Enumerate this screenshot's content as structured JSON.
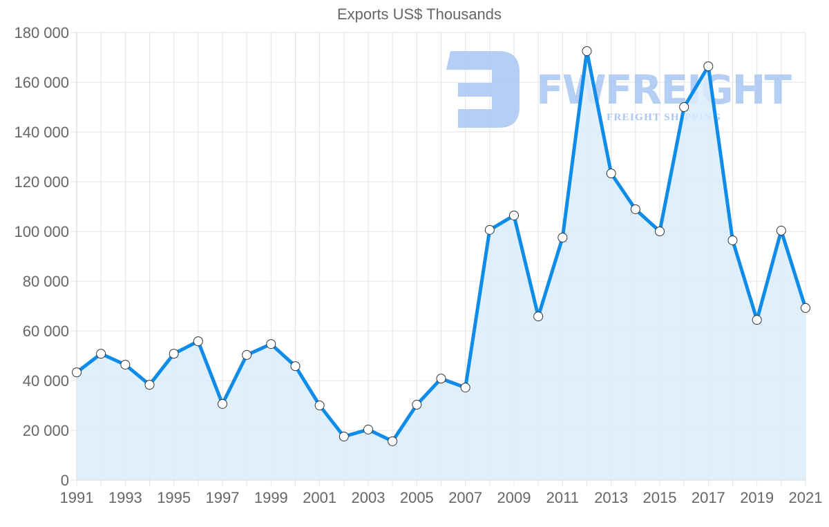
{
  "chart_data": {
    "type": "line",
    "title": "Exports US$ Thousands",
    "xlabel": "",
    "ylabel": "",
    "x": [
      1991,
      1992,
      1993,
      1994,
      1995,
      1996,
      1997,
      1998,
      1999,
      2000,
      2001,
      2002,
      2003,
      2004,
      2005,
      2006,
      2007,
      2008,
      2009,
      2010,
      2011,
      2012,
      2013,
      2014,
      2015,
      2016,
      2017,
      2018,
      2019,
      2020,
      2021
    ],
    "series": [
      {
        "name": "Exports US$ Thousands",
        "values": [
          43300,
          50800,
          46400,
          38300,
          50800,
          55800,
          30600,
          50300,
          54700,
          45800,
          30000,
          17500,
          20300,
          15600,
          30300,
          40800,
          37200,
          100600,
          106400,
          65800,
          97500,
          172500,
          123300,
          108900,
          100000,
          150000,
          166400,
          96400,
          64400,
          100300,
          69200
        ],
        "color": "#0f8be8",
        "fill": "#d9ecfc"
      }
    ],
    "ylim": [
      0,
      180000
    ],
    "yticks": [
      0,
      20000,
      40000,
      60000,
      80000,
      100000,
      120000,
      140000,
      160000,
      180000
    ],
    "ytick_labels": [
      "0",
      "20 000",
      "40 000",
      "60 000",
      "80 000",
      "100 000",
      "120 000",
      "140 000",
      "160 000",
      "180 000"
    ],
    "xticks": [
      1991,
      1993,
      1995,
      1997,
      1999,
      2001,
      2003,
      2005,
      2007,
      2009,
      2011,
      2013,
      2015,
      2017,
      2019,
      2021
    ],
    "xtick_labels": [
      "1991",
      "1993",
      "1995",
      "1997",
      "1999",
      "2001",
      "2003",
      "2005",
      "2007",
      "2009",
      "2011",
      "2013",
      "2015",
      "2017",
      "2019",
      "2021"
    ],
    "grid": true,
    "legend": "none",
    "area_filled": true
  },
  "watermark": {
    "brand": "FWFREIGHT",
    "tagline": "FREIGHT SHIPPING",
    "color": "#a9c6f2"
  }
}
